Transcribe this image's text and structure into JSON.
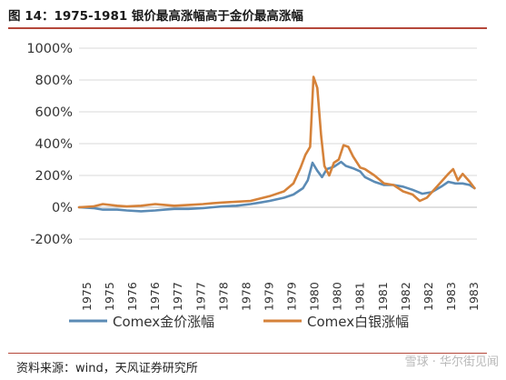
{
  "header": {
    "title": "图 14：1975-1981 银价最高涨幅高于金价最高涨幅"
  },
  "footer": {
    "source": "资料来源：wind，天风证券研究所",
    "watermark": "雪球 · 华尔街见闻"
  },
  "colors": {
    "gold": "#5b8bb5",
    "silver": "#d5823a",
    "rule": "#b5473a"
  },
  "chart_data": {
    "type": "line",
    "title": "",
    "xlabel": "",
    "ylabel": "",
    "ylim": [
      -200,
      1000
    ],
    "xlim": [
      1975.0,
      1983.35
    ],
    "yticks": [
      -200,
      0,
      200,
      400,
      600,
      800,
      1000
    ],
    "ytick_labels": [
      "-200%",
      "0%",
      "200%",
      "400%",
      "600%",
      "800%",
      "1000%"
    ],
    "xtick_labels": [
      "1975",
      "1975",
      "1976",
      "1976",
      "1977",
      "1977",
      "1978",
      "1978",
      "1979",
      "1979",
      "1980",
      "1980",
      "1981",
      "1981",
      "1982",
      "1982",
      "1983",
      "1983"
    ],
    "grid": "horizontal",
    "legend_position": "bottom",
    "series": [
      {
        "name": "Comex金价涨幅",
        "color": "#5b8bb5",
        "x": [
          1975.0,
          1975.3,
          1975.5,
          1975.8,
          1976.0,
          1976.3,
          1976.6,
          1976.8,
          1977.0,
          1977.3,
          1977.6,
          1977.8,
          1978.0,
          1978.3,
          1978.6,
          1978.8,
          1979.0,
          1979.3,
          1979.5,
          1979.7,
          1979.8,
          1979.9,
          1980.0,
          1980.1,
          1980.2,
          1980.35,
          1980.5,
          1980.6,
          1980.75,
          1980.9,
          1981.0,
          1981.2,
          1981.4,
          1981.6,
          1981.8,
          1982.0,
          1982.2,
          1982.4,
          1982.6,
          1982.75,
          1982.9,
          1983.05,
          1983.2,
          1983.3
        ],
        "y": [
          0,
          -5,
          -15,
          -15,
          -20,
          -25,
          -20,
          -15,
          -10,
          -10,
          -5,
          0,
          5,
          10,
          20,
          30,
          40,
          60,
          80,
          120,
          170,
          280,
          230,
          190,
          240,
          255,
          285,
          260,
          245,
          225,
          190,
          160,
          140,
          140,
          130,
          110,
          85,
          95,
          130,
          160,
          150,
          150,
          140,
          120
        ]
      },
      {
        "name": "Comex白银涨幅",
        "color": "#d5823a",
        "x": [
          1975.0,
          1975.3,
          1975.5,
          1975.8,
          1976.0,
          1976.3,
          1976.6,
          1976.8,
          1977.0,
          1977.3,
          1977.6,
          1977.8,
          1978.0,
          1978.3,
          1978.6,
          1978.8,
          1979.0,
          1979.3,
          1979.5,
          1979.65,
          1979.75,
          1979.85,
          1979.92,
          1980.0,
          1980.08,
          1980.15,
          1980.25,
          1980.35,
          1980.45,
          1980.55,
          1980.65,
          1980.75,
          1980.9,
          1981.0,
          1981.2,
          1981.4,
          1981.6,
          1981.8,
          1982.0,
          1982.15,
          1982.3,
          1982.45,
          1982.6,
          1982.75,
          1982.85,
          1982.95,
          1983.05,
          1983.2,
          1983.3
        ],
        "y": [
          0,
          5,
          20,
          10,
          5,
          10,
          20,
          15,
          10,
          15,
          20,
          25,
          30,
          35,
          40,
          55,
          70,
          100,
          150,
          250,
          330,
          380,
          820,
          750,
          450,
          260,
          200,
          280,
          300,
          390,
          380,
          320,
          250,
          240,
          200,
          150,
          140,
          100,
          80,
          40,
          60,
          110,
          160,
          210,
          240,
          170,
          210,
          160,
          120
        ]
      }
    ]
  }
}
